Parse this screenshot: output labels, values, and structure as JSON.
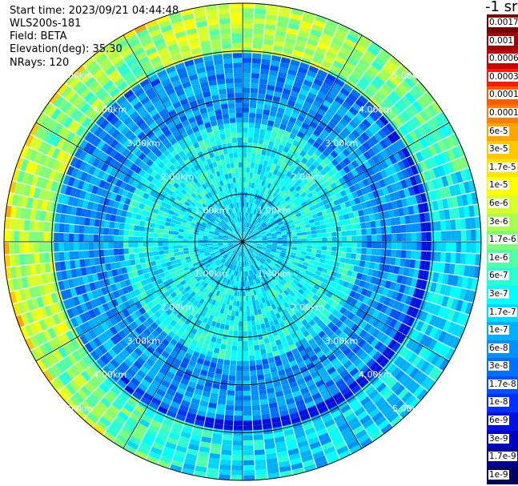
{
  "header": {
    "start_time": "Start time: 2023/09/21 04:44:48",
    "instrument": "WLS200s-181",
    "field": "Field: BETA",
    "elevation": "Elevation(deg): 35.30",
    "nrays": "NRays: 120"
  },
  "colorbar": {
    "units": "-1 sr",
    "levels": [
      {
        "label": "0.0017",
        "color": "#7a0000"
      },
      {
        "label": "0.001",
        "color": "#a40000"
      },
      {
        "label": "0.0006",
        "color": "#cc0000"
      },
      {
        "label": "0.0003",
        "color": "#ff1a00"
      },
      {
        "label": "0.00017",
        "color": "#ff5a00"
      },
      {
        "label": "0.0001",
        "color": "#ff8000"
      },
      {
        "label": "6e-5",
        "color": "#ffa500"
      },
      {
        "label": "3e-5",
        "color": "#ffc800"
      },
      {
        "label": "1.7e-5",
        "color": "#ffe600"
      },
      {
        "label": "1e-5",
        "color": "#ffff00"
      },
      {
        "label": "6e-6",
        "color": "#d8ff2a"
      },
      {
        "label": "3e-6",
        "color": "#a8ff50"
      },
      {
        "label": "1.7e-6",
        "color": "#7dff7a"
      },
      {
        "label": "1e-6",
        "color": "#50ffa8"
      },
      {
        "label": "6e-7",
        "color": "#2affd4"
      },
      {
        "label": "3e-7",
        "color": "#00ffff"
      },
      {
        "label": "1.7e-7",
        "color": "#00d8ff"
      },
      {
        "label": "1e-7",
        "color": "#00b0ff"
      },
      {
        "label": "6e-8",
        "color": "#0090ff"
      },
      {
        "label": "3e-8",
        "color": "#0070ff"
      },
      {
        "label": "1.7e-8",
        "color": "#0050ff"
      },
      {
        "label": "1e-8",
        "color": "#0030ff"
      },
      {
        "label": "6e-9",
        "color": "#0010e0"
      },
      {
        "label": "3e-9",
        "color": "#0000c0"
      },
      {
        "label": "1.7e-9",
        "color": "#000090"
      },
      {
        "label": "1e-9",
        "color": "#000060"
      }
    ]
  },
  "chart_data": {
    "type": "heatmap",
    "projection": "polar PPI",
    "field": "BETA",
    "elevation_deg": 35.3,
    "n_rays": 120,
    "max_range_km": 5.0,
    "range_rings_km": [
      1,
      2,
      3,
      4,
      5
    ],
    "ring_labels": [
      "1.00km",
      "2.00km",
      "3.00km",
      "4.00km",
      "5.00km"
    ],
    "spokes_deg": [
      0,
      30,
      60,
      90,
      120,
      150,
      180,
      210,
      240,
      270,
      300,
      330
    ],
    "range_zones": [
      {
        "range_km": [
          0.0,
          1.0
        ],
        "typical_level": "1.7e-7",
        "note": "mixed cyan/blue"
      },
      {
        "range_km": [
          1.0,
          2.5
        ],
        "typical_level": "3e-7",
        "note": "cyan ring"
      },
      {
        "range_km": [
          2.5,
          4.0
        ],
        "typical_level": "6e-8",
        "note": "blue"
      },
      {
        "range_km": [
          4.0,
          5.0
        ],
        "typical_level": "3e-6",
        "note": "green/yellow on north and west edge, blue to south"
      }
    ],
    "colorscale": "log, 1e-9 to 0.0017 sr-1 m-1"
  }
}
